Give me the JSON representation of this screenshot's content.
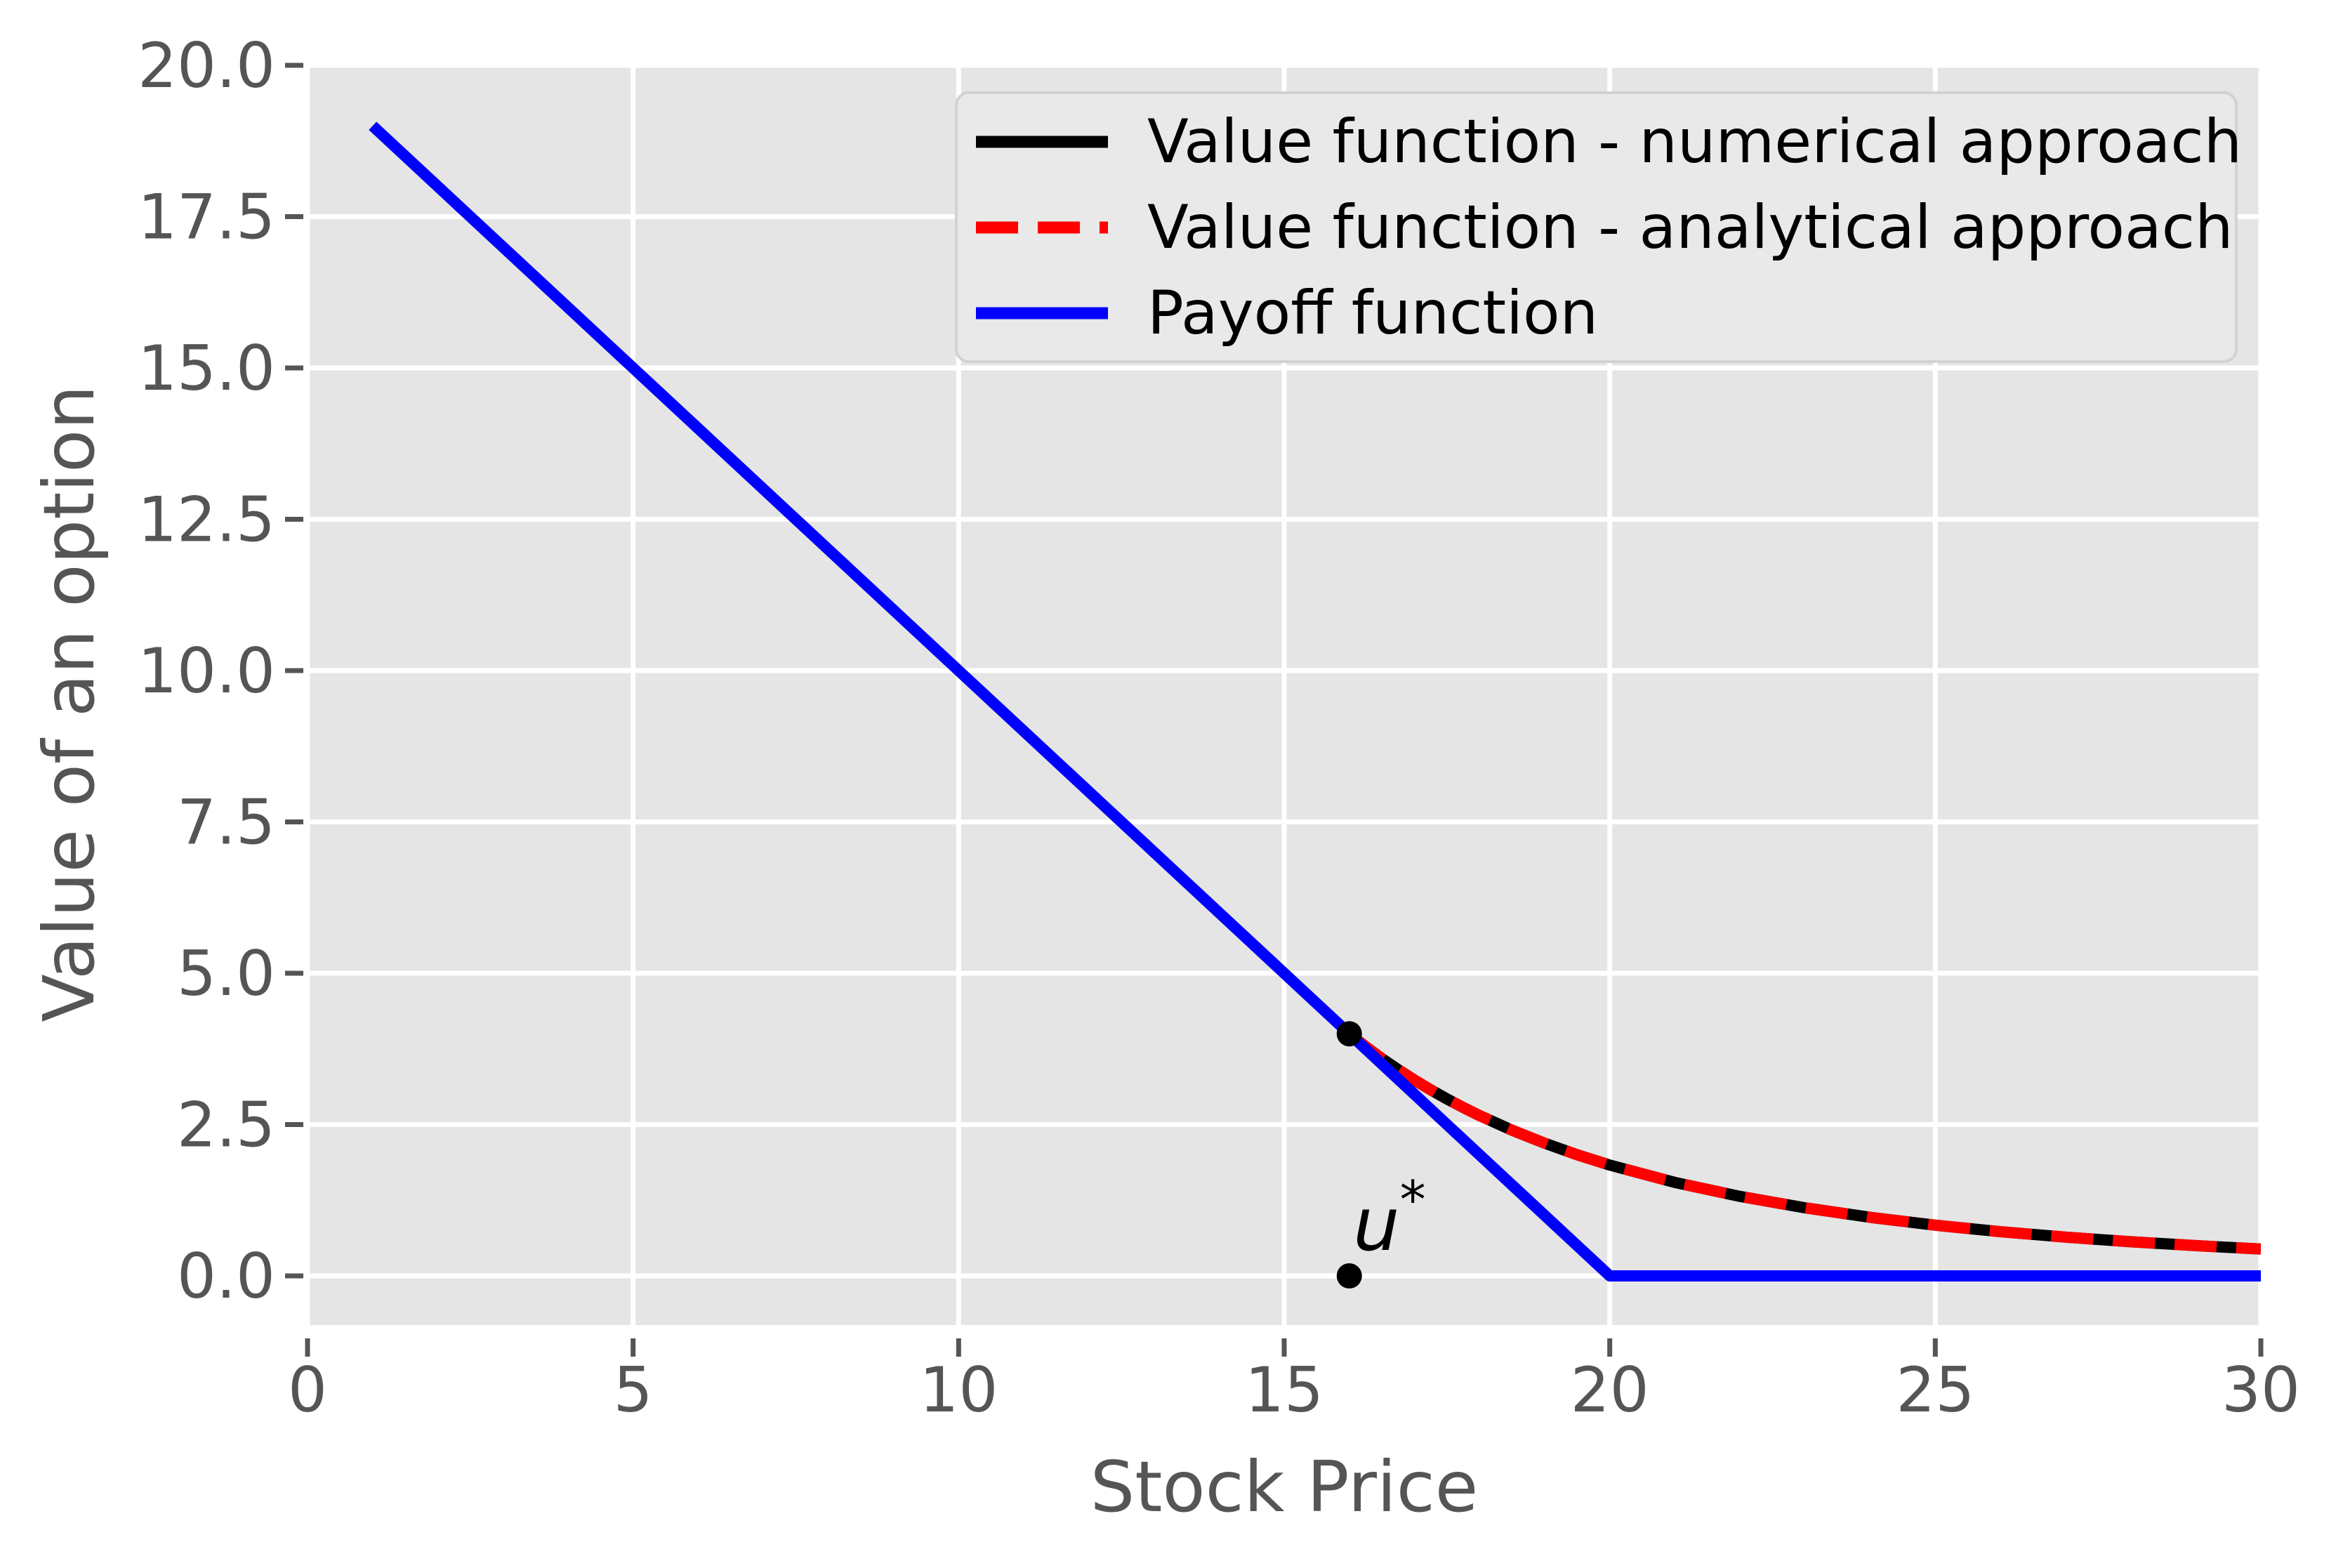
{
  "figure": {
    "background": "#ffffff",
    "plot_background": "#e5e5e5",
    "grid_color": "#ffffff",
    "tick_color": "#555555",
    "label_color": "#555555",
    "annotation": {
      "base": "u",
      "superscript": "*"
    },
    "legend": {
      "background": "#e9e9e9",
      "border_color": "#d2d2d2",
      "position": "upper right"
    }
  },
  "axes": {
    "x": {
      "label": "Stock Price",
      "ticks": [
        0,
        5,
        10,
        15,
        20,
        25,
        30
      ],
      "tick_labels": [
        "0",
        "5",
        "10",
        "15",
        "20",
        "25",
        "30"
      ]
    },
    "y": {
      "label": "Value of an option",
      "ticks": [
        0,
        2.5,
        5,
        7.5,
        10,
        12.5,
        15,
        17.5,
        20
      ],
      "tick_labels": [
        "0.0",
        "2.5",
        "5.0",
        "7.5",
        "10.0",
        "12.5",
        "15.0",
        "17.5",
        "20.0"
      ]
    }
  },
  "chart_data": {
    "type": "line",
    "title": "",
    "xlabel": "Stock Price",
    "ylabel": "Value of an option",
    "xlim": [
      0,
      30
    ],
    "ylim": [
      -0.95,
      20.05
    ],
    "grid": true,
    "legend_position": "upper right",
    "series": [
      {
        "name": "Value function - numerical approach",
        "color": "#000000",
        "style": "solid",
        "x": [
          16,
          16.25,
          16.5,
          16.75,
          17,
          17.25,
          17.5,
          17.75,
          18,
          18.5,
          19,
          19.5,
          20,
          21,
          22,
          23,
          24,
          25,
          26,
          27,
          28,
          29,
          30
        ],
        "y": [
          4.0,
          3.789,
          3.591,
          3.408,
          3.235,
          3.074,
          2.923,
          2.782,
          2.649,
          2.406,
          2.192,
          2.001,
          1.831,
          1.544,
          1.313,
          1.124,
          0.968,
          0.838,
          0.73,
          0.64,
          0.564,
          0.5,
          0.443
        ]
      },
      {
        "name": "Value function - analytical approach",
        "color": "#ff0000",
        "style": "dashed",
        "x": [
          16,
          16.25,
          16.5,
          16.75,
          17,
          17.25,
          17.5,
          17.75,
          18,
          18.5,
          19,
          19.5,
          20,
          21,
          22,
          23,
          24,
          25,
          26,
          27,
          28,
          29,
          30
        ],
        "y": [
          4.0,
          3.789,
          3.591,
          3.408,
          3.235,
          3.074,
          2.923,
          2.782,
          2.649,
          2.406,
          2.192,
          2.001,
          1.831,
          1.544,
          1.313,
          1.124,
          0.968,
          0.838,
          0.73,
          0.64,
          0.564,
          0.5,
          0.443
        ]
      },
      {
        "name": "Payoff function",
        "color": "#0000ff",
        "style": "solid",
        "x": [
          1,
          20,
          30
        ],
        "y": [
          19,
          0,
          0
        ]
      }
    ],
    "points": [
      {
        "name": "free-boundary-point",
        "x": 16,
        "y": 4,
        "marker": "dot",
        "color": "#000000"
      },
      {
        "name": "ustar-point",
        "x": 16,
        "y": 0,
        "marker": "dot",
        "color": "#000000",
        "annotation": "u*"
      }
    ]
  }
}
